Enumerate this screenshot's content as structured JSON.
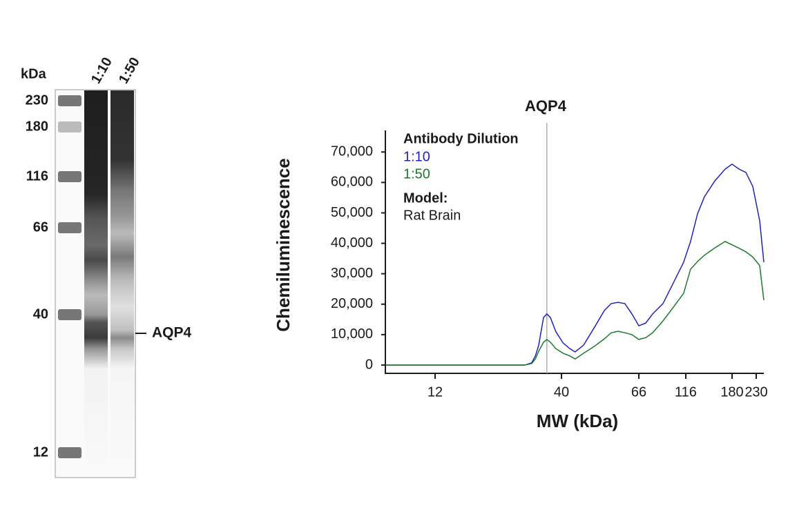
{
  "gel": {
    "unit": "kDa",
    "markers": [
      230,
      180,
      116,
      66,
      40,
      12
    ],
    "lanes": [
      "1:10",
      "1:50"
    ],
    "annotation": "AQP4"
  },
  "chart_data": {
    "type": "line",
    "annotation": {
      "label": "AQP4",
      "x": 34.8
    },
    "legend_title": "Antibody Dilution",
    "note_title": "Model:",
    "note": "Rat Brain",
    "y_label": "Chemiluminescence",
    "x_label": "MW (kDa)",
    "x": [
      7.5,
      19.0,
      28.2,
      30.1,
      31.2,
      32.2,
      33.7,
      34.8,
      36.0,
      37.9,
      40.4,
      42.2,
      43.7,
      46.2,
      49.4,
      52.8,
      55.2,
      57.7,
      60.3,
      63.1,
      66,
      71.7,
      77.9,
      88.2,
      99.9,
      113.1,
      121.4,
      129.7,
      138.5,
      152.8,
      168.6,
      180,
      193.1,
      207.0,
      222.1,
      238.2,
      248.4
    ],
    "series": [
      {
        "name": "1:10",
        "color": "#1f1fbf",
        "values": [
          0,
          0,
          0,
          700,
          3000,
          6500,
          15600,
          16800,
          15600,
          11000,
          7300,
          5400,
          4300,
          6600,
          12200,
          17900,
          20200,
          20600,
          20200,
          16800,
          12900,
          13800,
          16800,
          20200,
          27000,
          33800,
          40600,
          49700,
          55300,
          60500,
          64400,
          66000,
          64400,
          63300,
          58700,
          47400,
          33800
        ]
      },
      {
        "name": "1:50",
        "color": "#1b7a2a",
        "values": [
          0,
          0,
          0,
          500,
          2000,
          4500,
          7500,
          8400,
          7500,
          5400,
          3900,
          3000,
          2000,
          3900,
          6100,
          8600,
          10600,
          11100,
          10600,
          10000,
          8400,
          9000,
          10600,
          14500,
          19000,
          23600,
          31500,
          34000,
          36100,
          38500,
          40600,
          39500,
          38400,
          37200,
          35500,
          32700,
          21300
        ]
      }
    ],
    "xscale": "log",
    "xlim": [
      7.5,
      248.4
    ],
    "xticks": [
      12,
      40,
      66,
      116,
      180,
      230
    ],
    "ylim": [
      -2500,
      77000
    ],
    "yticks": [
      0,
      {
        "value": 10000,
        "label": "10,000"
      },
      {
        "value": 20000,
        "label": "20,000"
      },
      {
        "value": 30000,
        "label": "30,000"
      },
      {
        "value": 40000,
        "label": "40,000"
      },
      {
        "value": 50000,
        "label": "50,000"
      },
      {
        "value": 60000,
        "label": "60,000"
      },
      {
        "value": 70000,
        "label": "70,000"
      }
    ]
  }
}
